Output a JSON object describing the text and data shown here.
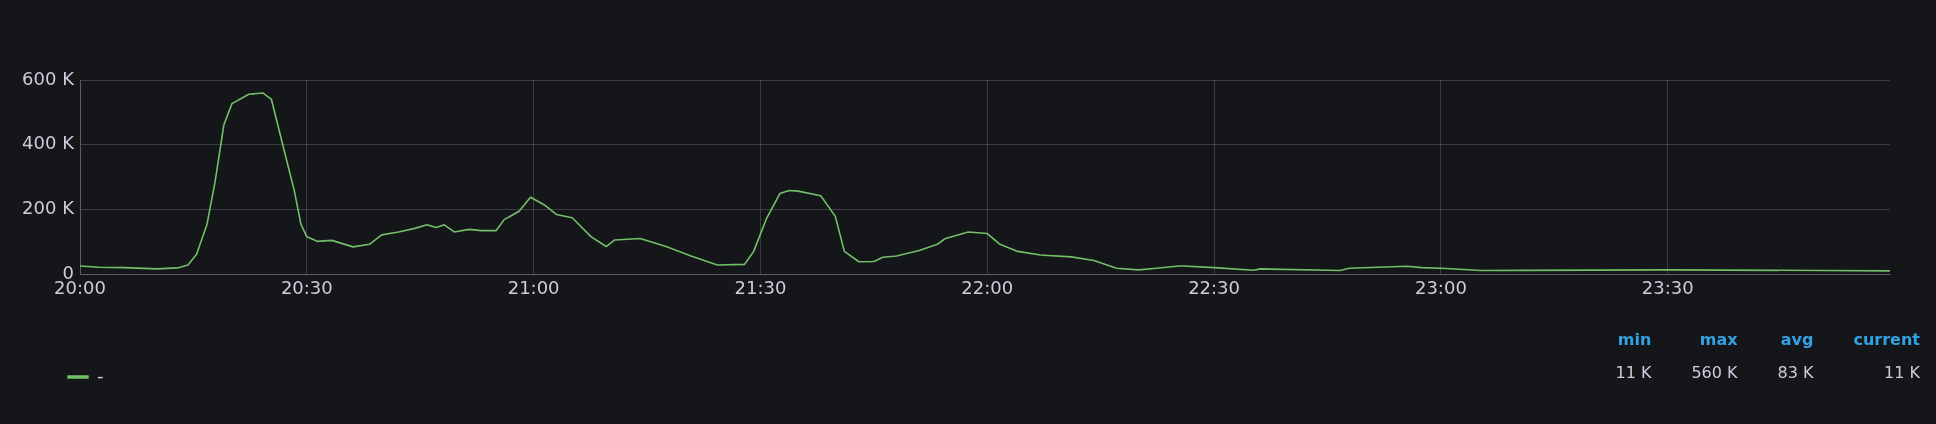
{
  "chart_data": {
    "type": "line",
    "x": [
      20,
      20.042,
      20.097,
      20.17,
      20.215,
      20.238,
      20.257,
      20.28,
      20.298,
      20.317,
      20.335,
      20.372,
      20.403,
      20.422,
      20.448,
      20.472,
      20.487,
      20.5,
      20.523,
      20.555,
      20.602,
      20.638,
      20.665,
      20.702,
      20.738,
      20.765,
      20.785,
      20.803,
      20.825,
      20.858,
      20.885,
      20.917,
      20.935,
      20.968,
      20.993,
      21.023,
      21.05,
      21.085,
      21.127,
      21.16,
      21.178,
      21.235,
      21.292,
      21.347,
      21.405,
      21.465,
      21.485,
      21.513,
      21.543,
      21.563,
      21.583,
      21.633,
      21.665,
      21.685,
      21.717,
      21.75,
      21.77,
      21.8,
      21.85,
      21.89,
      21.908,
      21.958,
      22,
      22.028,
      22.067,
      22.117,
      22.185,
      22.235,
      22.285,
      22.333,
      22.373,
      22.423,
      22.433,
      22.5,
      22.587,
      22.602,
      22.778,
      22.798,
      22.925,
      22.958,
      23.012,
      23.088,
      23.5,
      23.845,
      23.99
    ],
    "series": [
      {
        "name": "-",
        "color": "#73bf69",
        "values": [
          26000,
          22000,
          21000,
          17000,
          20000,
          29000,
          62000,
          155000,
          288000,
          461000,
          527000,
          556000,
          560000,
          540000,
          394000,
          261000,
          155000,
          116000,
          102000,
          105000,
          85000,
          93000,
          122000,
          131000,
          142000,
          153000,
          145000,
          153000,
          131000,
          139000,
          135000,
          135000,
          169000,
          195000,
          238000,
          215000,
          185000,
          175000,
          116000,
          86000,
          106000,
          111000,
          86000,
          57000,
          29000,
          31000,
          71000,
          171000,
          250000,
          259000,
          257000,
          243000,
          179000,
          71000,
          39000,
          40000,
          53000,
          57000,
          74000,
          93000,
          111000,
          131000,
          126000,
          93000,
          71000,
          60000,
          54000,
          43000,
          19000,
          14000,
          19000,
          26000,
          26000,
          21000,
          13000,
          17000,
          12000,
          19000,
          25000,
          21000,
          18000,
          12000,
          14000,
          12000,
          11000
        ]
      }
    ],
    "xlim": [
      20,
      23.99
    ],
    "xticks": [
      {
        "value": 20,
        "label": "20:00"
      },
      {
        "value": 20.5,
        "label": "20:30"
      },
      {
        "value": 21,
        "label": "21:00"
      },
      {
        "value": 21.5,
        "label": "21:30"
      },
      {
        "value": 22,
        "label": "22:00"
      },
      {
        "value": 22.5,
        "label": "22:30"
      },
      {
        "value": 23,
        "label": "23:00"
      },
      {
        "value": 23.5,
        "label": "23:30"
      }
    ],
    "ylim": [
      0,
      600000
    ],
    "yticks": [
      {
        "value": 0,
        "label": "0"
      },
      {
        "value": 200000,
        "label": "200 K"
      },
      {
        "value": 400000,
        "label": "400 K"
      },
      {
        "value": 600000,
        "label": "600 K"
      }
    ],
    "grid": true,
    "legend": "bottom",
    "marker": "none",
    "line_style": "solid",
    "annotations": [
      "min",
      "max",
      "avg",
      "current",
      "11 K",
      "560 K",
      "83 K",
      "11 K"
    ]
  }
}
